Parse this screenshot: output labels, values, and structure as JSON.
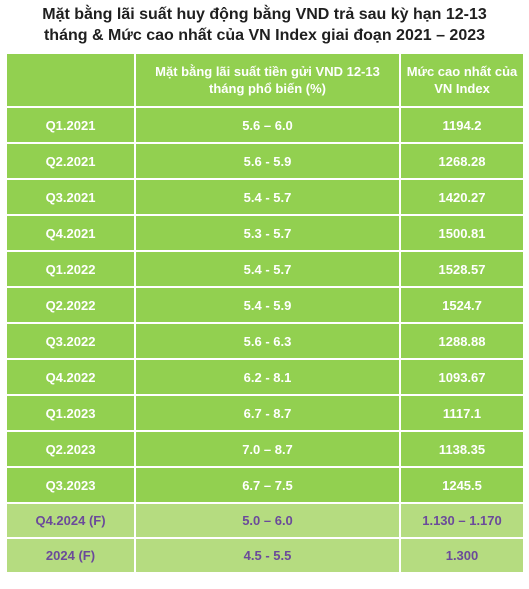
{
  "title": {
    "line1": "Mặt bằng lãi suất huy động bằng VND trả sau kỳ hạn 12-13",
    "line2": "tháng & Mức cao nhất của VN Index giai đoạn 2021 – 2023"
  },
  "table": {
    "headers": [
      "",
      "Mặt bằng lãi suất tiền gửi VND 12-13 tháng phổ biến (%)",
      "Mức cao nhất của VN Index"
    ],
    "rows": [
      [
        "Q1.2021",
        "5.6 – 6.0",
        "1194.2"
      ],
      [
        "Q2.2021",
        "5.6 - 5.9",
        "1268.28"
      ],
      [
        "Q3.2021",
        "5.4 - 5.7",
        "1420.27"
      ],
      [
        "Q4.2021",
        "5.3 - 5.7",
        "1500.81"
      ],
      [
        "Q1.2022",
        "5.4 - 5.7",
        "1528.57"
      ],
      [
        "Q2.2022",
        "5.4 - 5.9",
        "1524.7"
      ],
      [
        "Q3.2022",
        "5.6 - 6.3",
        "1288.88"
      ],
      [
        "Q4.2022",
        "6.2 - 8.1",
        "1093.67"
      ],
      [
        "Q1.2023",
        "6.7 - 8.7",
        "1117.1"
      ],
      [
        "Q2.2023",
        "7.0 – 8.7",
        "1138.35"
      ],
      [
        "Q3.2023",
        "6.7 – 7.5",
        "1245.5"
      ],
      [
        "Q4.2024 (F)",
        "5.0 – 6.0",
        "1.130 – 1.170"
      ],
      [
        "2024 (F)",
        "4.5 - 5.5",
        "1.300"
      ]
    ]
  },
  "colors": {
    "header_bg": "#92d050",
    "row_bg": "#92d050",
    "forecast_bg": "#b5dc80",
    "forecast_text": "#6b4a9a",
    "text": "#ffffff"
  }
}
